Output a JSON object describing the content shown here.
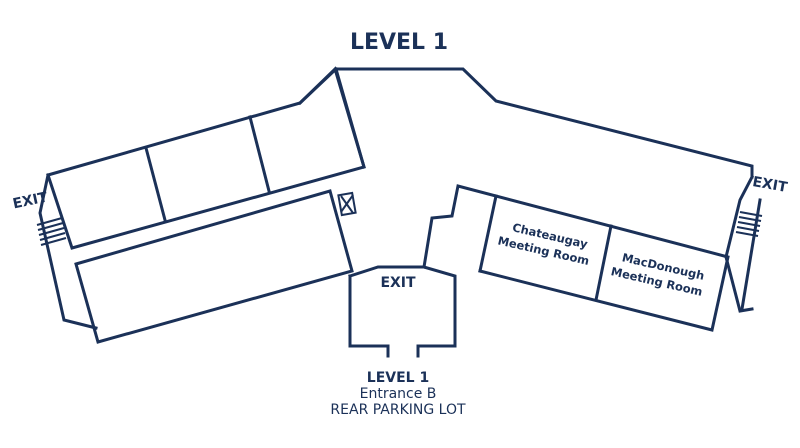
{
  "map": {
    "title": "LEVEL 1",
    "exits": {
      "left": "EXIT",
      "right": "EXIT",
      "center": "EXIT"
    },
    "rooms": {
      "chateaugay": {
        "line1": "Chateaugay",
        "line2": "Meeting Room"
      },
      "macdonough": {
        "line1": "MacDonough",
        "line2": "Meeting Room"
      }
    },
    "entrance": {
      "level": "LEVEL 1",
      "name": "Entrance B",
      "location": "REAR PARKING LOT"
    },
    "colors": {
      "line": "#1b3158",
      "text": "#1b3158",
      "background": "#ffffff"
    }
  }
}
